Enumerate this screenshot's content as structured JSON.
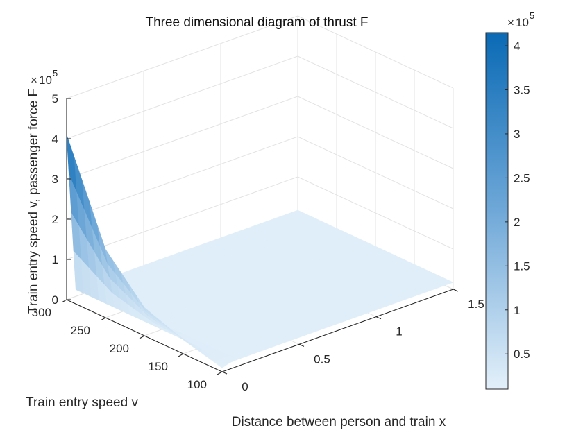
{
  "chart_data": {
    "type": "surface3d",
    "title": "Three dimensional diagram of thrust F",
    "xlabel": "Distance between person and train x",
    "ylabel": "Train entry speed v",
    "zlabel": "Train entry speed v, passenger force F",
    "xlim": [
      0,
      1.5
    ],
    "ylim": [
      100,
      300
    ],
    "zlim": [
      0,
      500000
    ],
    "x_ticks": [
      "0",
      "0.5",
      "1",
      "1.5"
    ],
    "y_ticks": [
      "100",
      "150",
      "200",
      "250",
      "300"
    ],
    "z_ticks": [
      "0",
      "1",
      "2",
      "3",
      "4",
      "5"
    ],
    "z_exponent_base": "10",
    "z_exponent_power": "5",
    "x": [
      0.05,
      0.1,
      0.2,
      0.4,
      0.6,
      0.8,
      1.0,
      1.2,
      1.4,
      1.5
    ],
    "v": [
      100,
      150,
      200,
      250,
      300
    ],
    "F_peak_by_v": [
      {
        "v": 100,
        "F": 10000
      },
      {
        "v": 150,
        "F": 35000
      },
      {
        "v": 200,
        "F": 70000
      },
      {
        "v": 250,
        "F": 170000
      },
      {
        "v": 300,
        "F": 410000
      }
    ],
    "F_plateau": 17000,
    "colorbar": {
      "ticks": [
        "0.5",
        "1",
        "1.5",
        "2",
        "2.5",
        "3",
        "3.5",
        "4"
      ],
      "tick_values": [
        50000,
        100000,
        150000,
        200000,
        250000,
        300000,
        350000,
        400000
      ],
      "range": [
        10000,
        415000
      ],
      "exponent_base": "10",
      "exponent_power": "5",
      "color_low": "#e3f0fa",
      "color_high": "#0a6ab5"
    }
  }
}
